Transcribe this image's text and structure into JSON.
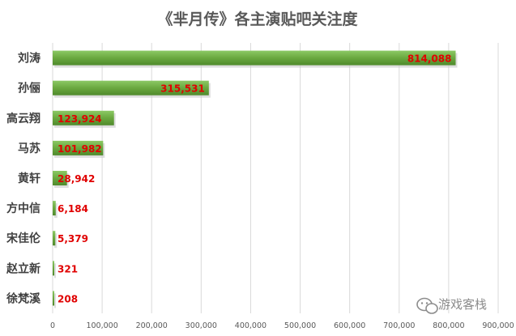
{
  "chart_data": {
    "type": "bar",
    "orientation": "horizontal",
    "title": "《芈月传》各主演贴吧关注度",
    "categories": [
      "刘涛",
      "孙俪",
      "高云翔",
      "马苏",
      "黄轩",
      "方中信",
      "宋佳伦",
      "赵立新",
      "徐梵溪"
    ],
    "values": [
      814088,
      315531,
      123924,
      101982,
      28942,
      6184,
      5379,
      321,
      208
    ],
    "data_labels": [
      "814,088",
      "315,531",
      "123,924",
      "101,982",
      "28,942",
      "6,184",
      "5,379",
      "321",
      "208"
    ],
    "xticks": [
      "0",
      "100,000",
      "200,000",
      "300,000",
      "400,000",
      "500,000",
      "600,000",
      "700,000",
      "800,000",
      "900,000"
    ],
    "xlim": [
      0,
      900000
    ],
    "grid": true,
    "legend": "none",
    "bar_color": "#70ad47",
    "label_color": "#e00000"
  },
  "watermark": {
    "text": "游戏客栈",
    "icon": "wechat-icon"
  }
}
